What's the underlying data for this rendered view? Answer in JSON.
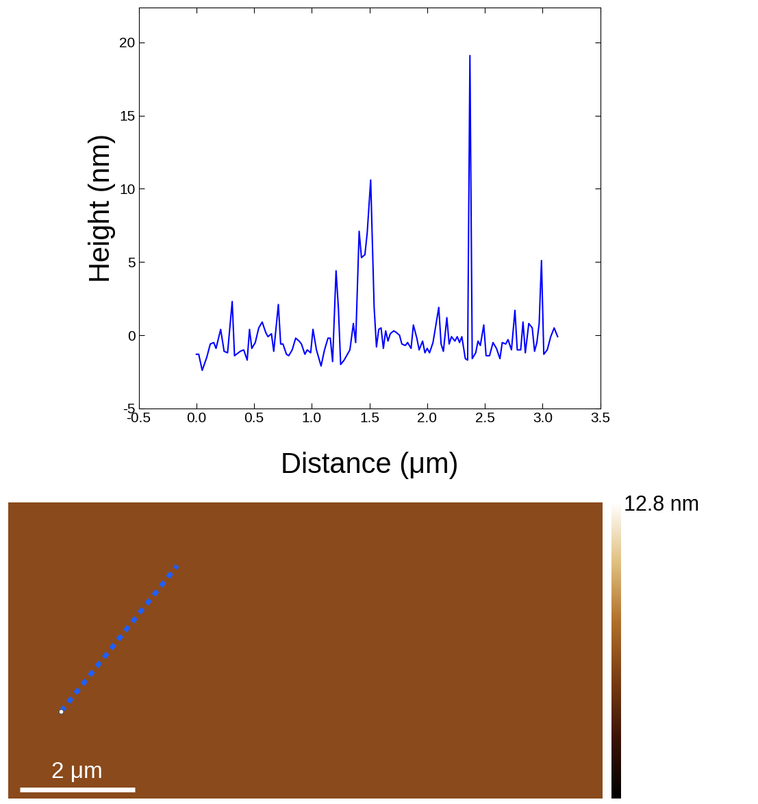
{
  "chart_data": [
    {
      "type": "line",
      "x_label": "Distance (μm)",
      "y_label": "Height (nm)",
      "xlim": [
        -0.5,
        3.5
      ],
      "xticks": [
        {
          "value": -0.5,
          "label": "-0.5"
        },
        {
          "value": 0,
          "label": "0.0"
        },
        {
          "value": 0.5,
          "label": "0.5"
        },
        {
          "value": 1,
          "label": "1.0"
        },
        {
          "value": 1.5,
          "label": "1.5"
        },
        {
          "value": 2,
          "label": "2.0"
        },
        {
          "value": 2.5,
          "label": "2.5"
        },
        {
          "value": 3,
          "label": "3.0"
        },
        {
          "value": 3.5,
          "label": "3.5"
        }
      ],
      "ylim": [
        -5,
        22.4
      ],
      "yticks": [
        -5,
        0,
        5,
        10,
        15,
        20
      ],
      "grid": false,
      "series": [
        {
          "color": "#0000ff",
          "x": [
            0.0,
            0.02,
            0.05,
            0.09,
            0.12,
            0.15,
            0.17,
            0.21,
            0.24,
            0.27,
            0.31,
            0.33,
            0.38,
            0.41,
            0.44,
            0.46,
            0.48,
            0.51,
            0.54,
            0.57,
            0.6,
            0.62,
            0.65,
            0.67,
            0.71,
            0.73,
            0.75,
            0.78,
            0.8,
            0.83,
            0.86,
            0.89,
            0.91,
            0.94,
            0.96,
            0.99,
            1.01,
            1.04,
            1.08,
            1.11,
            1.14,
            1.16,
            1.18,
            1.21,
            1.23,
            1.25,
            1.28,
            1.33,
            1.36,
            1.38,
            1.41,
            1.43,
            1.46,
            1.48,
            1.51,
            1.54,
            1.56,
            1.58,
            1.6,
            1.62,
            1.64,
            1.66,
            1.68,
            1.71,
            1.73,
            1.76,
            1.78,
            1.81,
            1.83,
            1.86,
            1.88,
            1.91,
            1.93,
            1.96,
            1.98,
            2.0,
            2.02,
            2.05,
            2.1,
            2.12,
            2.14,
            2.17,
            2.19,
            2.21,
            2.24,
            2.26,
            2.28,
            2.3,
            2.33,
            2.35,
            2.37,
            2.39,
            2.42,
            2.44,
            2.46,
            2.49,
            2.51,
            2.54,
            2.57,
            2.6,
            2.63,
            2.65,
            2.68,
            2.7,
            2.73,
            2.76,
            2.78,
            2.81,
            2.83,
            2.85,
            2.88,
            2.91,
            2.93,
            2.95,
            2.97,
            2.99,
            3.01,
            3.04,
            3.07,
            3.1,
            3.13
          ],
          "values": [
            -1.3,
            -1.3,
            -2.4,
            -1.5,
            -0.6,
            -0.5,
            -0.9,
            0.4,
            -1.1,
            -1.2,
            2.3,
            -1.4,
            -1.1,
            -1.0,
            -1.7,
            0.4,
            -0.9,
            -0.5,
            0.5,
            0.9,
            0.2,
            -0.1,
            0.1,
            -1.1,
            2.1,
            -0.6,
            -0.6,
            -1.3,
            -1.4,
            -1.0,
            -0.2,
            -0.4,
            -0.6,
            -1.3,
            -1.0,
            -1.2,
            0.4,
            -1.0,
            -2.1,
            -1.0,
            -0.2,
            -0.2,
            -1.8,
            4.4,
            1.9,
            -2.0,
            -1.7,
            -1.0,
            0.8,
            -0.5,
            7.1,
            5.3,
            5.5,
            7.0,
            10.6,
            1.9,
            -0.8,
            0.4,
            0.5,
            -0.9,
            0.3,
            -0.4,
            0.1,
            0.3,
            0.2,
            0.0,
            -0.6,
            -0.7,
            -0.5,
            -0.9,
            0.7,
            -0.2,
            -1.0,
            -0.4,
            -1.2,
            -0.9,
            -1.2,
            -0.5,
            1.9,
            -0.6,
            -1.1,
            1.2,
            -0.6,
            -0.1,
            -0.4,
            -0.1,
            -0.5,
            -0.1,
            -1.6,
            -1.7,
            19.1,
            -1.6,
            -1.2,
            -0.4,
            -0.7,
            0.7,
            -1.4,
            -1.4,
            -0.5,
            -0.9,
            -1.6,
            -0.5,
            -0.6,
            -0.3,
            -1.0,
            1.7,
            -1.0,
            -1.0,
            0.9,
            -1.2,
            0.8,
            0.5,
            -1.1,
            -0.5,
            0.8,
            5.1,
            -1.3,
            -1.0,
            -0.1,
            0.5,
            -0.1
          ]
        }
      ]
    },
    {
      "type": "image",
      "xlim": [
        0,
        10.35
      ],
      "ylim": [
        0,
        5.2
      ],
      "tick_labels": false,
      "color": "#8a4a1c",
      "colorbar_range": [
        0,
        12.8
      ],
      "colorbar_ticks": [
        {
          "value": 12.8,
          "label": "12.8 nm"
        }
      ],
      "scale_bar": {
        "x": [
          0.2,
          2.2
        ],
        "y": 0.15,
        "label": "2 μm"
      },
      "profile_line": {
        "x": [
          0.92,
          2.94
        ],
        "y": [
          1.53,
          4.09
        ],
        "color": "#1f5fff"
      }
    }
  ]
}
